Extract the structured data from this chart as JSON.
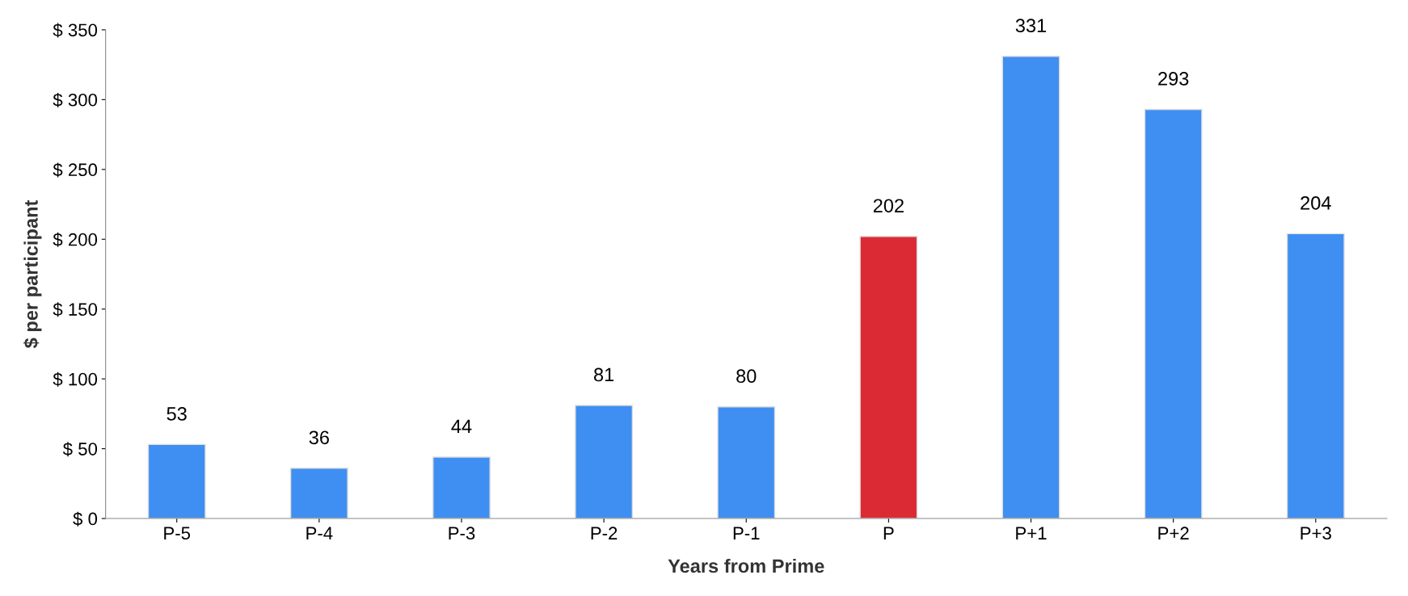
{
  "chart_data": {
    "type": "bar",
    "xlabel": "Years from Prime",
    "ylabel": "$ per participant",
    "categories": [
      "P-5",
      "P-4",
      "P-3",
      "P-2",
      "P-1",
      "P",
      "P+1",
      "P+2",
      "P+3"
    ],
    "values": [
      53,
      36,
      44,
      81,
      80,
      202,
      331,
      293,
      204
    ],
    "colors": [
      "#3f8ef2",
      "#3f8ef2",
      "#3f8ef2",
      "#3f8ef2",
      "#3f8ef2",
      "#dc2a35",
      "#3f8ef2",
      "#3f8ef2",
      "#3f8ef2"
    ],
    "ylim": [
      0,
      350
    ],
    "yticks": [
      {
        "value": 0,
        "label": "$ 0"
      },
      {
        "value": 50,
        "label": "$ 50"
      },
      {
        "value": 100,
        "label": "$ 100"
      },
      {
        "value": 150,
        "label": "$ 150"
      },
      {
        "value": 200,
        "label": "$ 200"
      },
      {
        "value": 250,
        "label": "$ 250"
      },
      {
        "value": 300,
        "label": "$ 300"
      },
      {
        "value": 350,
        "label": "$ 350"
      }
    ],
    "data_labels": true,
    "grid": false
  }
}
